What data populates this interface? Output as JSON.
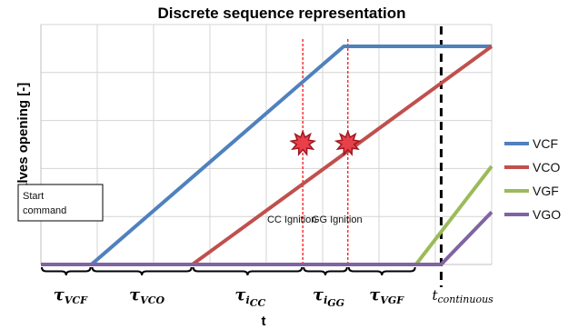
{
  "chart_data": {
    "type": "line",
    "title": "Discrete sequence representation",
    "xlabel": "t",
    "ylabel": "Valves opening [-]",
    "xlim": [
      0,
      10
    ],
    "ylim": [
      0,
      1.1
    ],
    "grid": true,
    "legend_position": "right",
    "series": [
      {
        "name": "VCF",
        "color": "#4f81bd",
        "x": [
          0,
          1.12,
          6.72,
          10
        ],
        "y": [
          0,
          0,
          1,
          1
        ]
      },
      {
        "name": "VCO",
        "color": "#c0504d",
        "x": [
          0,
          3.36,
          10
        ],
        "y": [
          0,
          0,
          1
        ]
      },
      {
        "name": "VGF",
        "color": "#9bbb59",
        "x": [
          0,
          8.32,
          10
        ],
        "y": [
          0,
          0,
          0.45
        ]
      },
      {
        "name": "VGO",
        "color": "#8064a2",
        "x": [
          0,
          8.88,
          10
        ],
        "y": [
          0,
          0,
          0.24
        ]
      }
    ],
    "vlines": [
      {
        "x": 5.81,
        "color": "#ff0000",
        "style": "dotted"
      },
      {
        "x": 6.81,
        "color": "#ff0000",
        "style": "dotted"
      },
      {
        "x": 8.88,
        "color": "#000000",
        "style": "dashed"
      }
    ],
    "annotations": [
      {
        "label": "CC Ignition",
        "x": 5.81,
        "y": 0.41
      },
      {
        "label": "GG Ignition",
        "x": 6.81,
        "y": 0.41
      }
    ],
    "start_box": {
      "line1": "Start",
      "line2": "command"
    },
    "intervals": [
      {
        "main": "τ",
        "sub": "VCF",
        "from": 0,
        "to": 1.12
      },
      {
        "main": "τ",
        "sub": "VCO",
        "from": 1.12,
        "to": 3.36
      },
      {
        "main": "τ",
        "sub": "i",
        "subsub": "CC",
        "from": 3.36,
        "to": 5.81
      },
      {
        "main": "τ",
        "sub": "i",
        "subsub": "GG",
        "from": 5.81,
        "to": 6.81
      },
      {
        "main": "τ",
        "sub": "VGF",
        "from": 6.81,
        "to": 8.32
      }
    ],
    "t_continuous": {
      "main": "t",
      "sub": "continuous",
      "x": 8.88
    }
  }
}
